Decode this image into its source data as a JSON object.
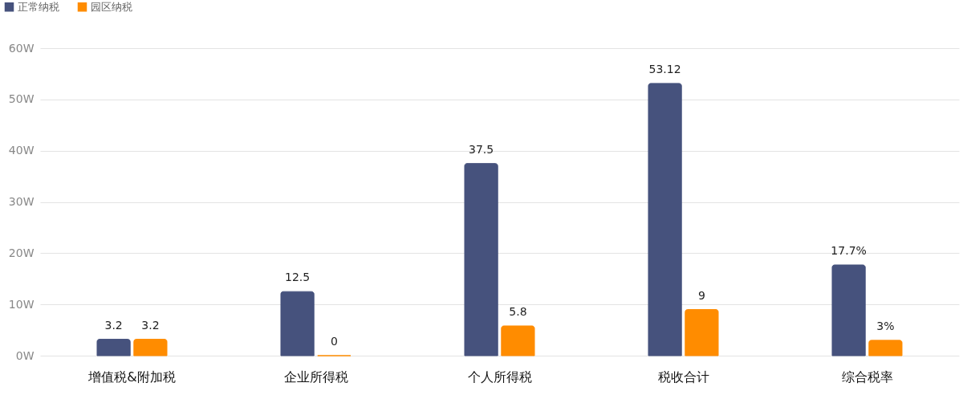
{
  "chart_data": {
    "type": "bar",
    "categories": [
      "增值税&附加税",
      "企业所得税",
      "个人所得税",
      "税收合计",
      "综合税率"
    ],
    "series": [
      {
        "name": "正常纳税",
        "color": "#46527d",
        "values": [
          3.2,
          12.5,
          37.5,
          53.12,
          17.7
        ],
        "value_labels": [
          "3.2",
          "12.5",
          "37.5",
          "53.12",
          "17.7%"
        ]
      },
      {
        "name": "园区纳税",
        "color": "#ff8c00",
        "values": [
          3.2,
          0,
          5.8,
          9,
          3
        ],
        "value_labels": [
          "3.2",
          "0",
          "5.8",
          "9",
          "3%"
        ]
      }
    ],
    "ylim": [
      0,
      60
    ],
    "yticks": [
      {
        "value": 0,
        "label": "0W"
      },
      {
        "value": 10,
        "label": "10W"
      },
      {
        "value": 20,
        "label": "20W"
      },
      {
        "value": 30,
        "label": "30W"
      },
      {
        "value": 40,
        "label": "40W"
      },
      {
        "value": 50,
        "label": "50W"
      },
      {
        "value": 60,
        "label": "60W"
      }
    ],
    "grid": "y",
    "legend": "top left"
  }
}
